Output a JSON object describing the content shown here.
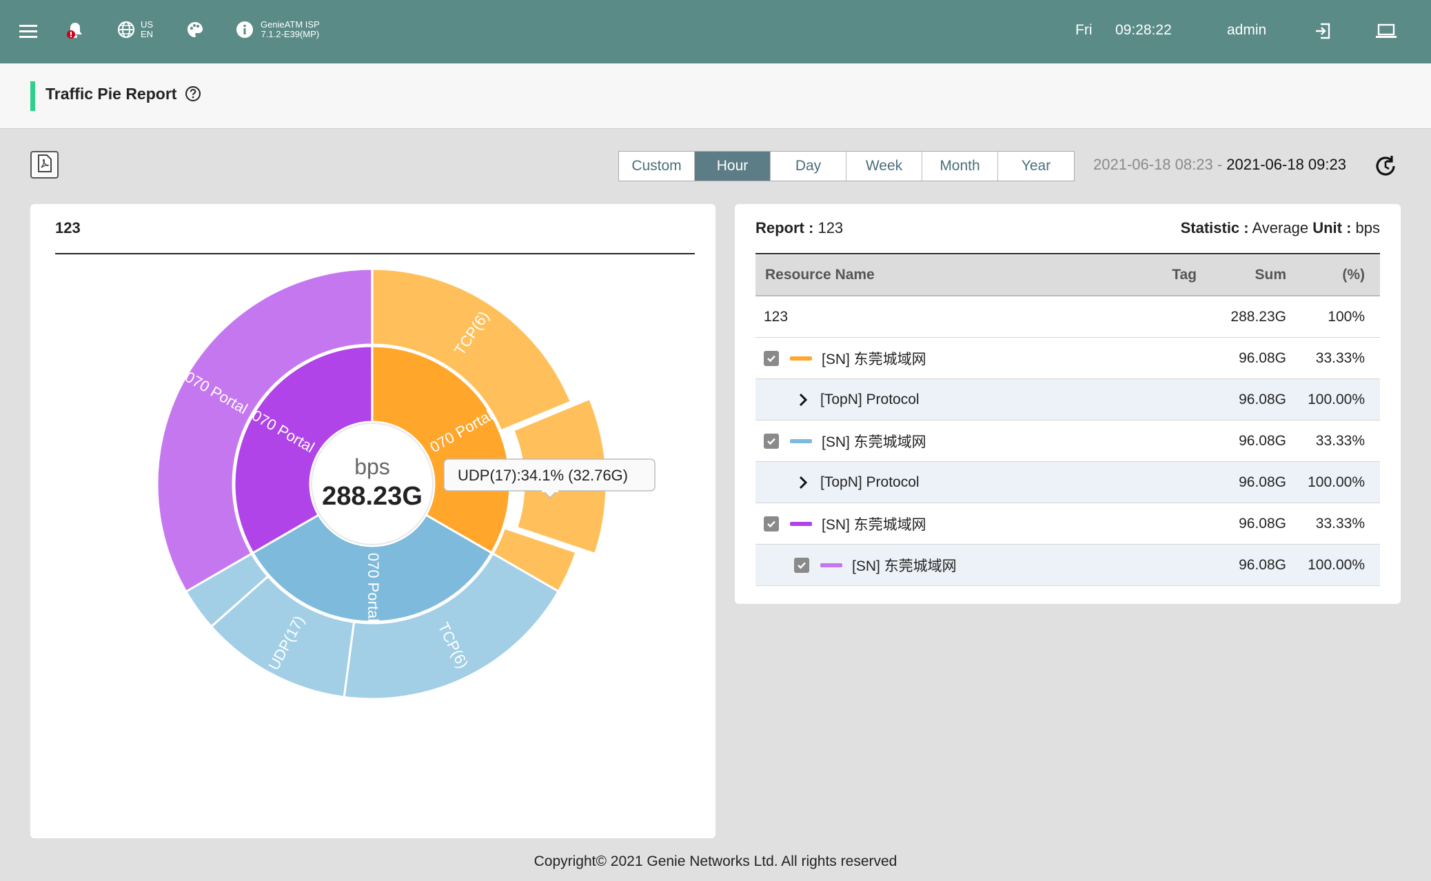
{
  "topbar": {
    "lang_primary": "US",
    "lang_secondary": "EN",
    "product_name": "GenieATM ISP",
    "product_version": "7.1.2-E39(MP)",
    "day": "Fri",
    "time": "09:28:22",
    "user": "admin",
    "bg_color": "#5a8b87"
  },
  "page": {
    "title": "Traffic Pie Report"
  },
  "toolbar": {
    "ranges": [
      "Custom",
      "Hour",
      "Day",
      "Week",
      "Month",
      "Year"
    ],
    "active_range": "Hour",
    "date_start": "2021-06-18 08:23",
    "date_separator": " - ",
    "date_end": "2021-06-18 09:23"
  },
  "chart_panel": {
    "title": "123"
  },
  "chart_data": {
    "type": "sunburst",
    "center_unit": "bps",
    "center_value": "288.23G",
    "inner_ring": [
      {
        "name": "070 Portal",
        "share": 0.3333,
        "color": "#ffa62b"
      },
      {
        "name": "070 Portal",
        "share": 0.3333,
        "color": "#7ebadb"
      },
      {
        "name": "070 Portal",
        "share": 0.3333,
        "color": "#b044e8"
      }
    ],
    "outer_ring": [
      {
        "name": "TCP(6)",
        "parent": 0,
        "share": 0.1876,
        "color": "#ffc05c"
      },
      {
        "name": "UDP(17)",
        "parent": 0,
        "share": 0.1137,
        "color": "#ffc05c",
        "highlighted": true
      },
      {
        "name": "",
        "parent": 0,
        "share": 0.032,
        "color": "#ffc05c"
      },
      {
        "name": "TCP(6)",
        "parent": 1,
        "share": 0.1876,
        "color": "#a2cfe6"
      },
      {
        "name": "UDP(17)",
        "parent": 1,
        "share": 0.1137,
        "color": "#a2cfe6"
      },
      {
        "name": "",
        "parent": 1,
        "share": 0.032,
        "color": "#a2cfe6"
      },
      {
        "name": "070 Portal",
        "parent": 2,
        "share": 0.3333,
        "color": "#c577f0"
      }
    ],
    "tooltip": "UDP(17):34.1% (32.76G)"
  },
  "report": {
    "report_label": "Report :",
    "report_name": "123",
    "statistic_label": "Statistic :",
    "statistic_value": "Average",
    "unit_label": "Unit :",
    "unit_value": "bps",
    "columns": [
      "Resource Name",
      "Tag",
      "Sum",
      "(%)"
    ],
    "total_row": {
      "name": "123",
      "sum": "288.23G",
      "pct": "100%"
    },
    "rows": [
      {
        "kind": "sn",
        "name": "[SN] 东莞城域网",
        "sum": "96.08G",
        "pct": "33.33%",
        "color": "#ffa62b"
      },
      {
        "kind": "topn",
        "name": "[TopN] Protocol",
        "sum": "96.08G",
        "pct": "100.00%"
      },
      {
        "kind": "sn",
        "name": "[SN] 东莞城域网",
        "sum": "96.08G",
        "pct": "33.33%",
        "color": "#7ebadb"
      },
      {
        "kind": "topn",
        "name": "[TopN] Protocol",
        "sum": "96.08G",
        "pct": "100.00%"
      },
      {
        "kind": "sn",
        "name": "[SN] 东莞城域网",
        "sum": "96.08G",
        "pct": "33.33%",
        "color": "#b044e8"
      },
      {
        "kind": "sub-sn",
        "name": "[SN] 东莞城域网",
        "sum": "96.08G",
        "pct": "100.00%",
        "color": "#c577f0"
      }
    ]
  },
  "footer": {
    "copyright": "Copyright© 2021 Genie Networks Ltd. All rights reserved"
  }
}
